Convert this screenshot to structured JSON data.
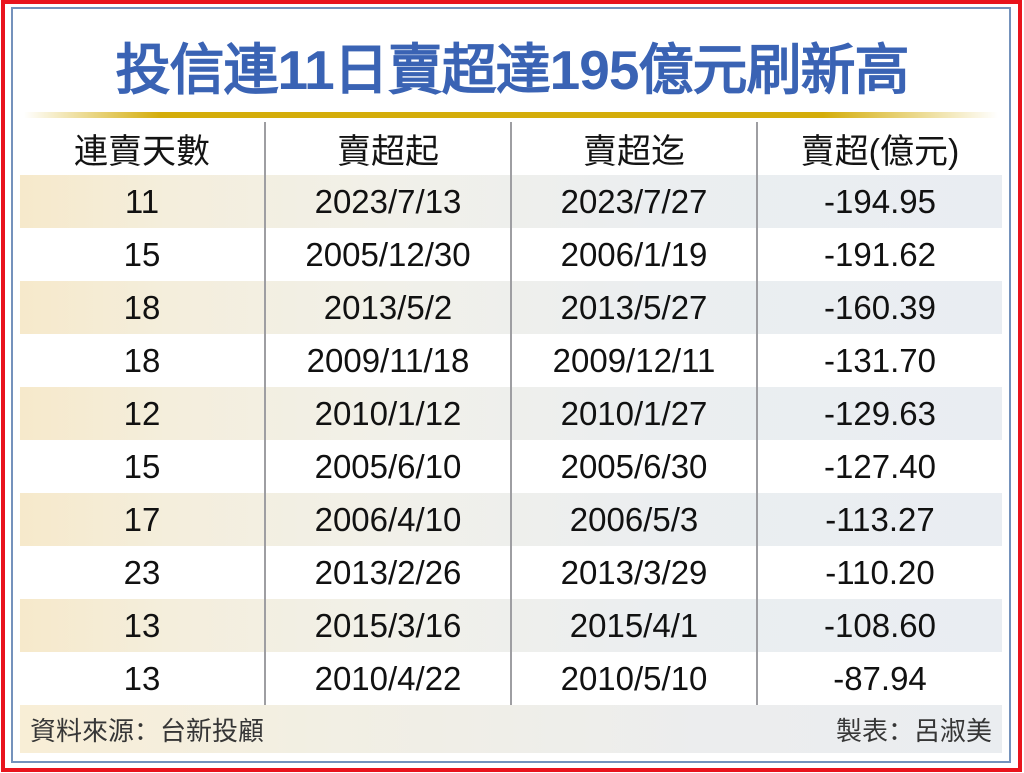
{
  "title": "投信連11日賣超達195億元刷新高",
  "colors": {
    "outer_border": "#e9141d",
    "inner_border": "#7492bc",
    "title_text": "#3a63b4",
    "gold_divider": "#d4ad0a",
    "column_separator": "#9e9ea2",
    "stripe_left": "#f6e9cb",
    "stripe_right": "#e9edf2"
  },
  "chart_data": {
    "type": "table",
    "title": "投信連11日賣超達195億元刷新高",
    "columns": [
      "連賣天數",
      "賣超起",
      "賣超迄",
      "賣超(億元)"
    ],
    "rows": [
      [
        "11",
        "2023/7/13",
        "2023/7/27",
        "-194.95"
      ],
      [
        "15",
        "2005/12/30",
        "2006/1/19",
        "-191.62"
      ],
      [
        "18",
        "2013/5/2",
        "2013/5/27",
        "-160.39"
      ],
      [
        "18",
        "2009/11/18",
        "2009/12/11",
        "-131.70"
      ],
      [
        "12",
        "2010/1/12",
        "2010/1/27",
        "-129.63"
      ],
      [
        "15",
        "2005/6/10",
        "2005/6/30",
        "-127.40"
      ],
      [
        "17",
        "2006/4/10",
        "2006/5/3",
        "-113.27"
      ],
      [
        "23",
        "2013/2/26",
        "2013/3/29",
        "-110.20"
      ],
      [
        "13",
        "2015/3/16",
        "2015/4/1",
        "-108.60"
      ],
      [
        "13",
        "2010/4/22",
        "2010/5/10",
        "-87.94"
      ]
    ],
    "layout_hints": {
      "striped_row_indices": [
        0,
        2,
        4,
        6,
        8
      ],
      "value_unit": "億元"
    }
  },
  "footer": {
    "source": "資料來源：台新投顧",
    "credit": "製表：呂淑美"
  }
}
